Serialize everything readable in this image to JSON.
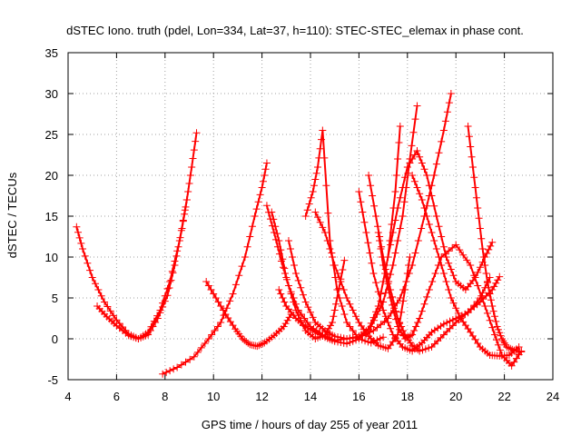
{
  "chart_data": {
    "type": "scatter",
    "title": "dSTEC Iono. truth (pdel, Lon=334, Lat=37, h=110): STEC-STEC_elemax in phase cont.",
    "xlabel": "GPS time / hours of day 255 of year 2011",
    "ylabel": "dSTEC  / TECUs",
    "xlim": [
      4,
      24
    ],
    "ylim": [
      -5,
      35
    ],
    "xticks": [
      4,
      6,
      8,
      10,
      12,
      14,
      16,
      18,
      20,
      22,
      24
    ],
    "yticks": [
      -5,
      0,
      5,
      10,
      15,
      20,
      25,
      30,
      35
    ],
    "grid": true,
    "marker": "plus",
    "color": "#ff0000",
    "series": [
      {
        "x": [
          4.35,
          4.6,
          5.0,
          5.5,
          6.0,
          6.5,
          6.9,
          7.3,
          7.8,
          8.2,
          8.6,
          8.9,
          9.1,
          9.3
        ],
        "y": [
          13.7,
          11.0,
          7.5,
          4.5,
          2.3,
          0.6,
          0.0,
          0.8,
          3.5,
          7.0,
          12.0,
          17.0,
          21.0,
          25.2
        ]
      },
      {
        "x": [
          5.2,
          5.6,
          6.0,
          6.5,
          6.9,
          7.3,
          7.7,
          8.1,
          8.4,
          8.7,
          8.9
        ],
        "y": [
          4.0,
          2.7,
          1.6,
          0.4,
          0.0,
          0.5,
          2.5,
          5.3,
          9.0,
          13.5,
          17.0
        ]
      },
      {
        "x": [
          7.9,
          8.5,
          9.2,
          9.8,
          10.3,
          10.8,
          11.3,
          11.7,
          12.0,
          12.2
        ],
        "y": [
          -4.3,
          -3.5,
          -2.2,
          0.0,
          2.0,
          5.5,
          10.0,
          15.0,
          18.5,
          21.5
        ]
      },
      {
        "x": [
          9.7,
          10.1,
          10.5,
          10.9,
          11.2,
          11.5,
          11.8,
          12.1,
          12.5,
          12.9,
          13.2
        ],
        "y": [
          7.0,
          5.0,
          3.0,
          1.2,
          0.0,
          -0.7,
          -0.9,
          -0.5,
          0.4,
          1.5,
          3.0
        ]
      },
      {
        "x": [
          12.2,
          12.5,
          12.8,
          13.1,
          13.5,
          14.0,
          14.5,
          15.0,
          15.5,
          16.0,
          16.4,
          16.8,
          17.2,
          17.5,
          17.7
        ],
        "y": [
          16.3,
          13.0,
          9.5,
          6.5,
          3.5,
          1.5,
          0.5,
          -0.2,
          0.0,
          0.3,
          1.2,
          4.0,
          10.0,
          18.0,
          26.0
        ]
      },
      {
        "x": [
          12.4,
          12.7,
          13.0,
          13.4,
          13.8,
          14.2,
          14.6,
          14.9,
          15.1,
          15.4
        ],
        "y": [
          15.5,
          12.0,
          7.5,
          3.5,
          1.0,
          0.0,
          0.5,
          2.0,
          5.0,
          9.6
        ]
      },
      {
        "x": [
          12.7,
          13.0,
          13.4,
          13.8,
          14.2,
          14.6,
          15.0,
          15.5,
          16.0,
          16.5,
          17.0,
          17.4,
          17.8,
          18.1,
          18.4
        ],
        "y": [
          6.0,
          4.0,
          2.5,
          1.5,
          0.8,
          0.2,
          -0.3,
          -0.6,
          0.0,
          1.5,
          4.5,
          9.0,
          15.0,
          22.0,
          28.5
        ]
      },
      {
        "x": [
          13.1,
          13.4,
          13.8,
          14.2,
          14.6,
          15.0,
          15.5,
          16.0,
          16.6,
          17.2,
          17.7,
          18.2,
          18.7,
          19.1,
          19.5,
          19.8
        ],
        "y": [
          12.0,
          8.0,
          4.5,
          2.0,
          1.0,
          0.3,
          0.0,
          0.2,
          1.0,
          2.5,
          5.0,
          9.0,
          15.0,
          20.0,
          25.5,
          30.0
        ]
      },
      {
        "x": [
          13.8,
          14.1,
          14.3,
          14.5,
          14.8,
          15.1,
          15.5,
          16.0,
          16.5,
          17.0
        ],
        "y": [
          15.0,
          18.0,
          21.0,
          25.5,
          12.0,
          6.0,
          2.0,
          0.0,
          -0.5,
          0.2
        ]
      },
      {
        "x": [
          14.2,
          14.6,
          15.0,
          15.5,
          16.0,
          16.4,
          16.8,
          17.2,
          17.6,
          17.9,
          18.1
        ],
        "y": [
          15.5,
          13.0,
          9.0,
          5.0,
          2.0,
          0.3,
          -0.8,
          -1.2,
          0.5,
          6.0,
          10.0
        ]
      },
      {
        "x": [
          16.0,
          16.3,
          16.6,
          17.0,
          17.4,
          17.8,
          18.2,
          18.6,
          19.0,
          19.5,
          20.0,
          20.5,
          21.0,
          21.4
        ],
        "y": [
          18.0,
          13.0,
          8.0,
          3.5,
          0.5,
          -1.0,
          -1.5,
          -0.5,
          0.8,
          1.8,
          2.5,
          3.2,
          5.0,
          7.5
        ]
      },
      {
        "x": [
          16.4,
          16.7,
          17.0,
          17.3,
          17.6,
          17.9,
          18.2,
          18.5,
          19.0,
          19.5,
          20.0,
          20.5,
          21.0,
          21.5,
          21.8
        ],
        "y": [
          20.0,
          15.0,
          10.0,
          6.0,
          2.5,
          0.5,
          -0.8,
          -1.5,
          -1.0,
          0.5,
          2.0,
          3.3,
          4.5,
          6.0,
          7.6
        ]
      },
      {
        "x": [
          16.8,
          17.0,
          17.3,
          17.6,
          17.9,
          18.2,
          18.5,
          18.9,
          19.4,
          20.0,
          20.6,
          21.2,
          21.6,
          21.9,
          22.3,
          22.7
        ],
        "y": [
          13.0,
          9.0,
          5.0,
          1.5,
          0.0,
          0.5,
          2.5,
          6.0,
          10.0,
          11.5,
          9.0,
          4.0,
          0.5,
          -2.0,
          -3.3,
          -1.5
        ]
      },
      {
        "x": [
          17.2,
          17.6,
          18.0,
          18.4,
          18.8,
          19.2,
          19.6,
          20.0,
          20.4,
          20.8,
          21.2,
          21.5
        ],
        "y": [
          10.0,
          16.0,
          21.0,
          23.0,
          20.0,
          15.0,
          10.0,
          7.0,
          6.0,
          7.5,
          10.0,
          11.8
        ]
      },
      {
        "x": [
          18.2,
          18.6,
          19.0,
          19.4,
          19.8,
          20.2,
          20.6,
          21.0,
          21.4,
          21.8,
          22.2,
          22.6
        ],
        "y": [
          20.0,
          17.0,
          13.0,
          9.0,
          5.0,
          2.5,
          0.8,
          -1.0,
          -2.0,
          -2.1,
          -2.0,
          -1.0
        ]
      },
      {
        "x": [
          20.5,
          20.7,
          20.9,
          21.1,
          21.3,
          21.5,
          21.7,
          21.9,
          22.1,
          22.4,
          22.7
        ],
        "y": [
          26.0,
          21.0,
          16.0,
          11.0,
          7.0,
          4.0,
          1.5,
          0.0,
          -1.0,
          -1.4,
          -1.6
        ]
      }
    ]
  }
}
